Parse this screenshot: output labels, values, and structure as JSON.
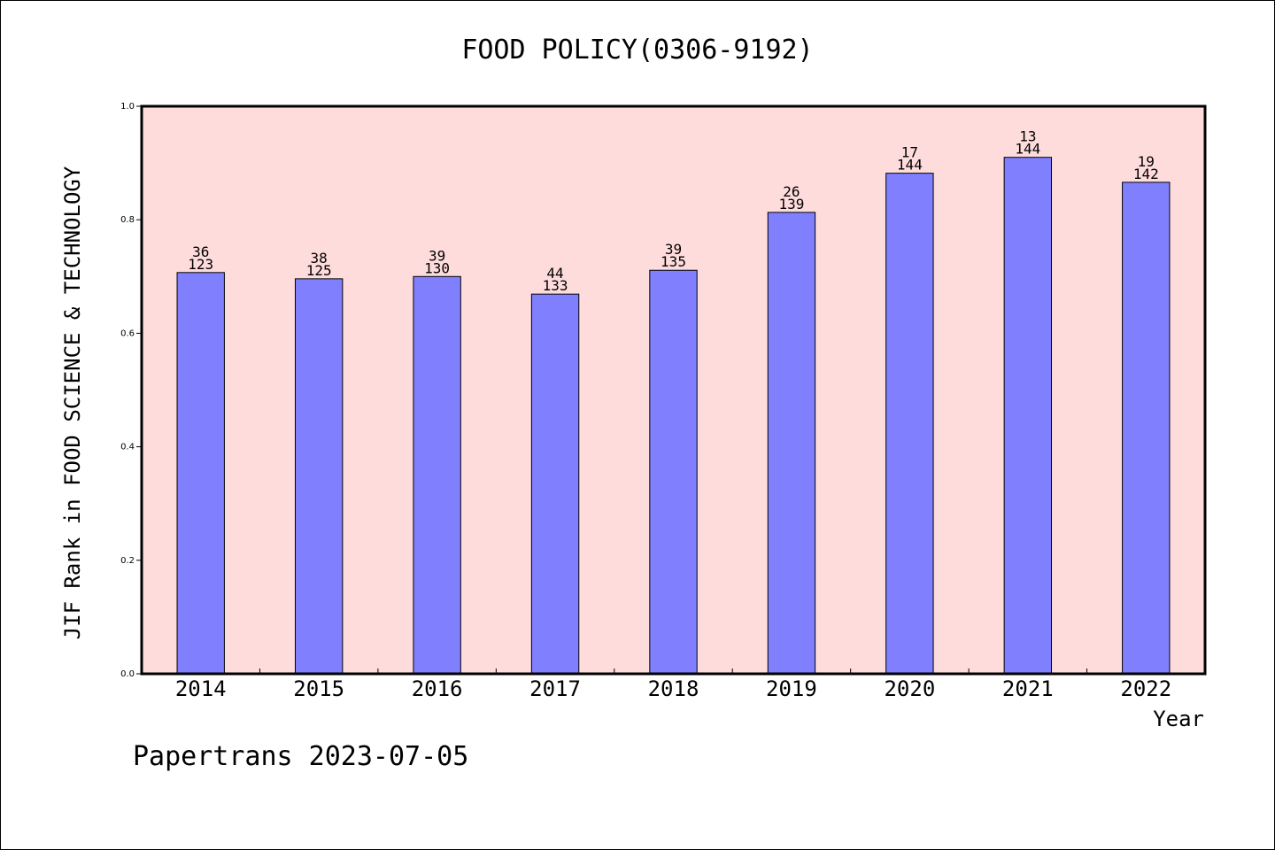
{
  "chart_data": {
    "type": "bar",
    "title": "FOOD POLICY(0306-9192)",
    "xlabel": "Year",
    "ylabel": "JIF Rank in FOOD SCIENCE & TECHNOLOGY",
    "ylim": [
      0,
      1.0
    ],
    "yticks": [
      "0.0",
      "0.2",
      "0.4",
      "0.6",
      "0.8",
      "1.0"
    ],
    "categories": [
      "2014",
      "2015",
      "2016",
      "2017",
      "2018",
      "2019",
      "2020",
      "2021",
      "2022"
    ],
    "values": [
      0.707,
      0.696,
      0.7,
      0.669,
      0.711,
      0.813,
      0.882,
      0.91,
      0.866
    ],
    "rank_labels": [
      "36",
      "38",
      "39",
      "44",
      "39",
      "26",
      "17",
      "13",
      "19"
    ],
    "total_labels": [
      "123",
      "125",
      "130",
      "133",
      "135",
      "139",
      "144",
      "144",
      "142"
    ],
    "bar_color": "#8080ff",
    "plot_background": "#ffdcdc",
    "grid": false
  },
  "footer": {
    "credit": "Papertrans 2023-07-05"
  }
}
